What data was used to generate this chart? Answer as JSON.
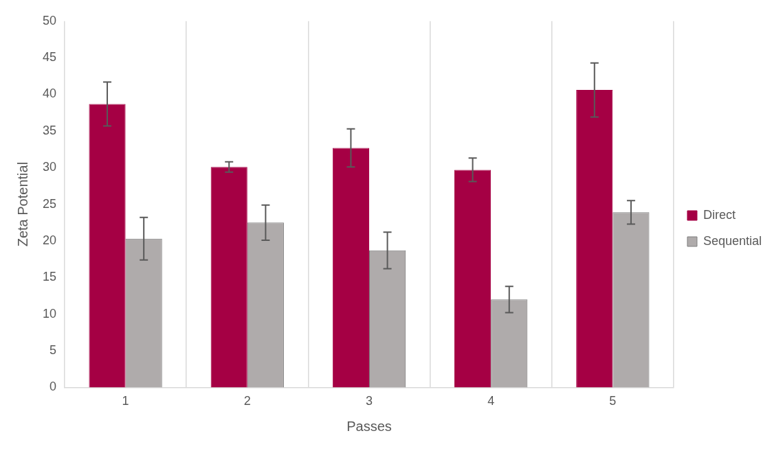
{
  "chart_data": {
    "type": "bar",
    "xlabel": "Passes",
    "ylabel": "Zeta Potential",
    "categories": [
      "1",
      "2",
      "3",
      "4",
      "5"
    ],
    "series": [
      {
        "name": "Direct",
        "color": "#a50044",
        "values": [
          38.7,
          30.1,
          32.7,
          29.7,
          40.6
        ],
        "errors": [
          3.0,
          0.7,
          2.6,
          1.6,
          3.7
        ]
      },
      {
        "name": "Sequential",
        "color": "#afabab",
        "values": [
          20.3,
          22.5,
          18.7,
          12.0,
          23.9
        ],
        "errors": [
          2.9,
          2.4,
          2.5,
          1.8,
          1.6
        ]
      }
    ],
    "ylim": [
      0,
      50
    ],
    "yticks": [
      0,
      5,
      10,
      15,
      20,
      25,
      30,
      35,
      40,
      45,
      50
    ],
    "grid": "x",
    "legend": "right"
  }
}
